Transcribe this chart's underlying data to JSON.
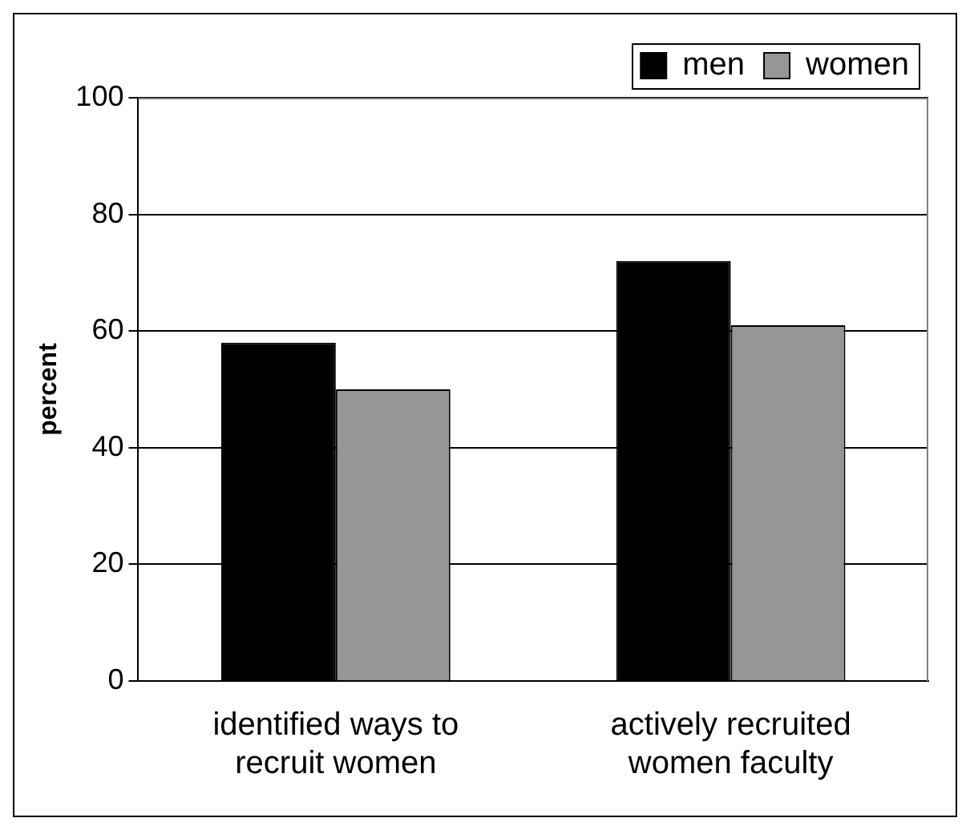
{
  "chart_data": {
    "type": "bar",
    "ylabel": "percent",
    "categories": [
      "identified ways to recruit women",
      "actively recruited women faculty"
    ],
    "series": [
      {
        "name": "men",
        "color": "#000000",
        "values": [
          58,
          72
        ]
      },
      {
        "name": "women",
        "color": "#969696",
        "values": [
          50,
          61
        ]
      }
    ],
    "ylim": [
      0,
      100
    ],
    "yticks": [
      0,
      20,
      40,
      60,
      80,
      100
    ],
    "grid": "y",
    "legend": "top right"
  }
}
